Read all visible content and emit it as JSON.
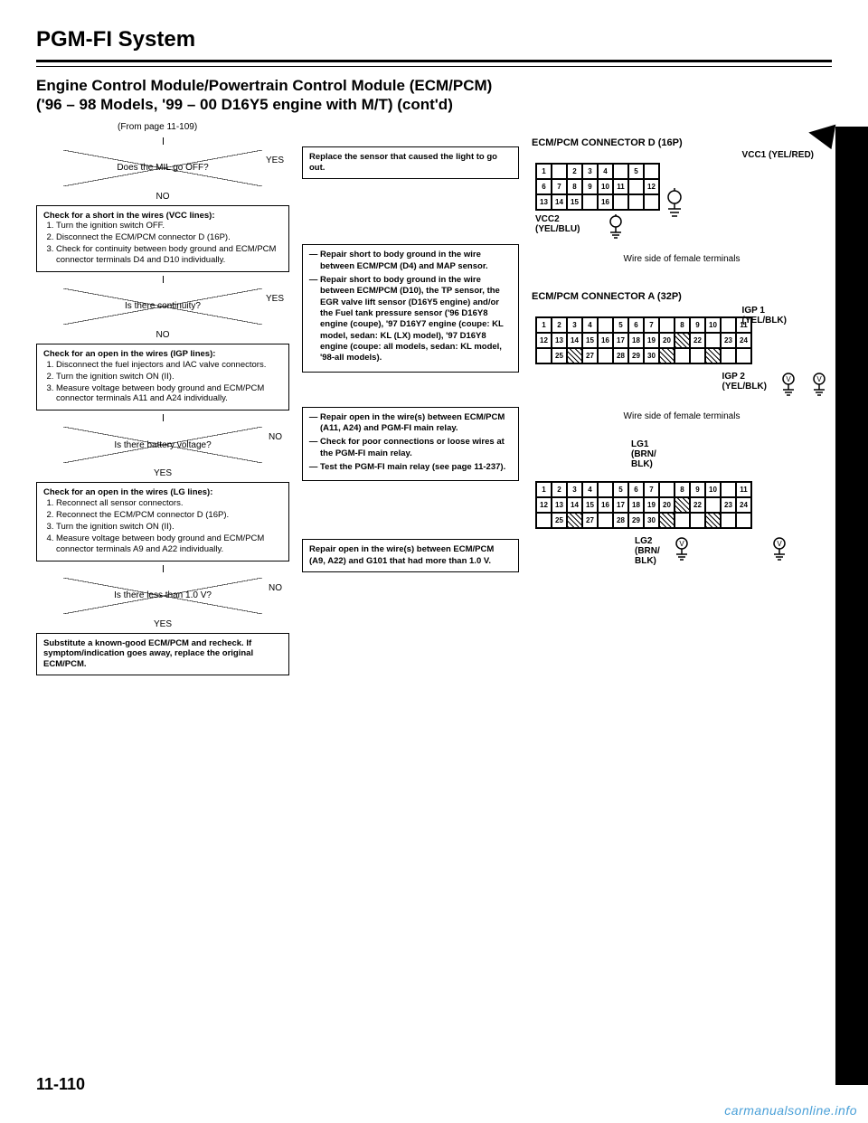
{
  "page": {
    "system_title": "PGM-FI System",
    "section_title_l1": "Engine Control Module/Powertrain Control Module (ECM/PCM)",
    "section_title_l2": "('96 – 98 Models, '99 – 00 D16Y5 engine with M/T) (cont'd)",
    "from_page": "(From page 11-109)",
    "page_number": "11-110",
    "watermark": "carmanualsonline.info"
  },
  "flow": {
    "d1": "Does the MIL go OFF?",
    "yes": "YES",
    "no": "NO",
    "p1_title": "Check for a short in the wires (VCC lines):",
    "p1_items": [
      "Turn the ignition switch OFF.",
      "Disconnect the ECM/PCM connector D (16P).",
      "Check for continuity between body ground and ECM/PCM connector terminals D4 and D10 individually."
    ],
    "d2": "Is there continuity?",
    "p2_title": "Check for an open in the wires (IGP lines):",
    "p2_items": [
      "Disconnect the fuel injectors and IAC valve connectors.",
      "Turn the ignition switch ON (II).",
      "Measure voltage between body ground and ECM/PCM connector terminals A11 and A24 individually."
    ],
    "d3": "Is there battery voltage?",
    "p3_title": "Check for an open in the wires (LG lines):",
    "p3_items": [
      "Reconnect all sensor connectors.",
      "Reconnect the ECM/PCM connector D (16P).",
      "Turn the ignition switch ON (II).",
      "Measure voltage between body ground and ECM/PCM connector terminals A9 and A22 individually."
    ],
    "d4": "Is there less than 1.0 V?",
    "p4": "Substitute a known-good ECM/PCM and recheck. If symptom/indication goes away, replace the original ECM/PCM.",
    "r1": "Replace the sensor that caused the light to go out.",
    "r2_items": [
      "Repair short to body ground in the wire between ECM/PCM (D4) and MAP sensor.",
      "Repair short to body ground in the wire between ECM/PCM (D10), the TP sensor, the EGR valve lift sensor (D16Y5 engine) and/or the Fuel tank pressure sensor ('96 D16Y8 engine (coupe), '97 D16Y7 engine (coupe: KL model, sedan: KL (LX) model), '97 D16Y8 engine (coupe: all models, sedan: KL model, '98-all models)."
    ],
    "r3_items": [
      "Repair open in the wire(s) between ECM/PCM (A11, A24) and PGM-FI main relay.",
      "Check for poor connections or loose wires at the PGM-FI main relay.",
      "Test the PGM-FI main relay (see page 11-237)."
    ],
    "r4": "Repair open in the wire(s) between ECM/PCM (A9, A22) and G101 that had more than 1.0 V."
  },
  "connectors": {
    "d16p": {
      "title": "ECM/PCM CONNECTOR D (16P)",
      "vcc1": "VCC1 (YEL/RED)",
      "vcc2": "VCC2\n(YEL/BLU)",
      "caption": "Wire side of female terminals",
      "rows": [
        [
          "1",
          "",
          "2",
          "3",
          "4",
          "",
          "5",
          ""
        ],
        [
          "6",
          "7",
          "8",
          "9",
          "10",
          "11",
          "",
          "12"
        ],
        [
          "13",
          "14",
          "15",
          "",
          "16",
          "",
          "",
          ""
        ]
      ]
    },
    "a32p": {
      "title": "ECM/PCM CONNECTOR A (32P)",
      "igp1": "IGP 1\n(YEL/BLK)",
      "igp2": "IGP 2\n(YEL/BLK)",
      "caption": "Wire side of female terminals",
      "rows": [
        [
          "1",
          "2",
          "3",
          "4",
          "",
          "5",
          "6",
          "7",
          "",
          "8",
          "9",
          "10",
          "",
          "11"
        ],
        [
          "12",
          "13",
          "14",
          "15",
          "16",
          "17",
          "18",
          "19",
          "20",
          "/",
          "22",
          "",
          "23",
          "24"
        ],
        [
          "",
          "25",
          "/",
          "27",
          "",
          "28",
          "29",
          "30",
          "/",
          "",
          "",
          "/",
          "",
          ""
        ]
      ]
    },
    "lg": {
      "lg1": "LG1\n(BRN/\nBLK)",
      "lg2": "LG2\n(BRN/\nBLK)",
      "rows": [
        [
          "1",
          "2",
          "3",
          "4",
          "",
          "5",
          "6",
          "7",
          "",
          "8",
          "9",
          "10",
          "",
          "11"
        ],
        [
          "12",
          "13",
          "14",
          "15",
          "16",
          "17",
          "18",
          "19",
          "20",
          "/",
          "22",
          "",
          "23",
          "24"
        ],
        [
          "",
          "25",
          "/",
          "27",
          "",
          "28",
          "29",
          "30",
          "/",
          "",
          "",
          "/",
          "",
          ""
        ]
      ]
    }
  }
}
